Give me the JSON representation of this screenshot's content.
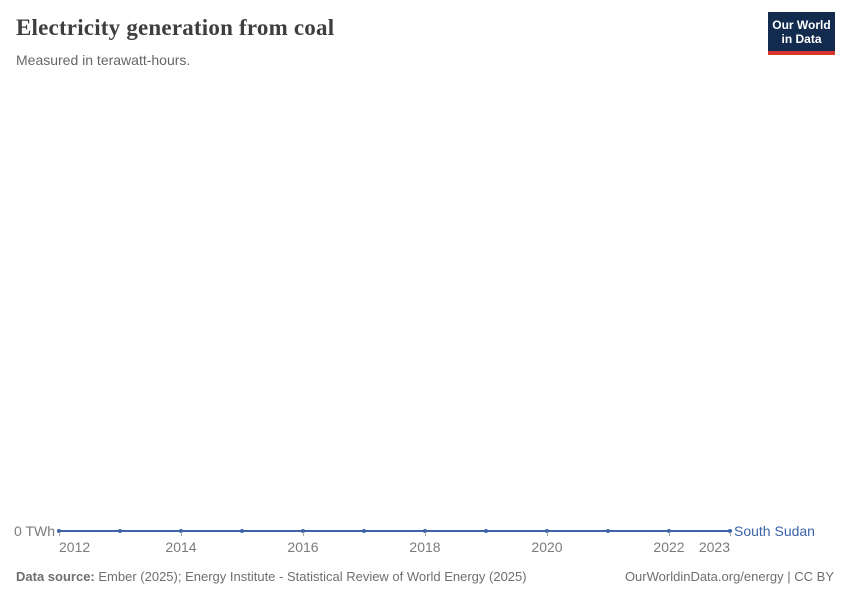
{
  "header": {
    "title": "Electricity generation from coal",
    "subtitle": "Measured in terawatt-hours.",
    "logo": {
      "line1": "Our World",
      "line2": "in Data",
      "bg_color": "#122b4f",
      "accent_color": "#d8352e"
    }
  },
  "chart_data": {
    "type": "line",
    "title": "Electricity generation from coal",
    "subtitle": "Measured in terawatt-hours.",
    "unit": "TWh",
    "x": [
      2012,
      2013,
      2014,
      2015,
      2016,
      2017,
      2018,
      2019,
      2020,
      2021,
      2022,
      2023
    ],
    "series": [
      {
        "name": "South Sudan",
        "color": "#3d63a8",
        "values": [
          0,
          0,
          0,
          0,
          0,
          0,
          0,
          0,
          0,
          0,
          0,
          0
        ]
      }
    ],
    "x_tick_labels": [
      2012,
      2014,
      2016,
      2018,
      2020,
      2022,
      2023
    ],
    "y_zero_label": "0 TWh",
    "ylim": [
      0,
      0
    ],
    "xlim": [
      2012,
      2023
    ],
    "grid": false,
    "legend_position": "end-of-line",
    "marker": "dot-every-year"
  },
  "footer": {
    "source_label": "Data source:",
    "source_text": "Ember (2025); Energy Institute - Statistical Review of World Energy (2025)",
    "link_text": "OurWorldinData.org/energy | CC BY"
  },
  "colors": {
    "line": "#3d63a8",
    "axis_text": "#7b7b7b",
    "tick": "#a9a9a9",
    "title": "#3e3e3e",
    "footer_text": "#6f6f6f"
  }
}
